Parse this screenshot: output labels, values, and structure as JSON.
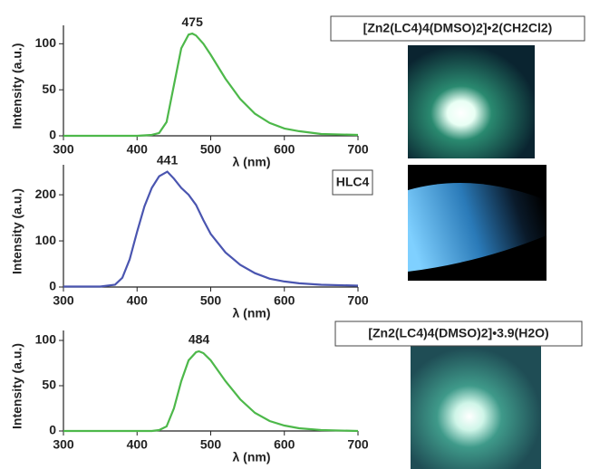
{
  "chart_data": [
    {
      "type": "line",
      "label": "[Zn2(LC4)4(DMSO)2]•2(CH2Cl2)",
      "xlabel": "λ (nm)",
      "ylabel": "Intensity (a.u.)",
      "color": "#4db84a",
      "x": [
        300,
        350,
        400,
        420,
        430,
        440,
        450,
        460,
        470,
        475,
        480,
        490,
        500,
        520,
        540,
        560,
        580,
        600,
        620,
        650,
        700
      ],
      "values": [
        0,
        0,
        0,
        1,
        3,
        15,
        55,
        95,
        110,
        111,
        109,
        100,
        88,
        62,
        40,
        24,
        14,
        8,
        5,
        2,
        1
      ],
      "xlim": [
        300,
        700
      ],
      "xticks": [
        300,
        400,
        500,
        600,
        700
      ],
      "ylim": [
        0,
        120
      ],
      "yticks": [
        0,
        50,
        100
      ],
      "annotations": [
        {
          "text": "475",
          "x": 475,
          "y": 111
        }
      ]
    },
    {
      "type": "line",
      "label": "HLC4",
      "xlabel": "λ (nm)",
      "ylabel": "Intensity (a.u.)",
      "color": "#4a55b0",
      "x": [
        300,
        350,
        370,
        380,
        390,
        400,
        410,
        420,
        430,
        441,
        450,
        460,
        470,
        480,
        490,
        500,
        520,
        540,
        560,
        580,
        600,
        620,
        650,
        700
      ],
      "values": [
        1,
        1,
        5,
        20,
        60,
        120,
        175,
        215,
        240,
        250,
        235,
        215,
        200,
        178,
        145,
        115,
        75,
        48,
        30,
        18,
        12,
        8,
        5,
        3
      ],
      "xlim": [
        300,
        700
      ],
      "xticks": [
        300,
        400,
        500,
        600,
        700
      ],
      "ylim": [
        0,
        265
      ],
      "yticks": [
        0,
        100,
        200
      ],
      "annotations": [
        {
          "text": "441",
          "x": 441,
          "y": 250
        }
      ]
    },
    {
      "type": "line",
      "label": "[Zn2(LC4)4(DMSO)2]•3.9(H2O)",
      "xlabel": "λ (nm)",
      "ylabel": "Intensity (a.u.)",
      "color": "#4db84a",
      "x": [
        300,
        350,
        400,
        420,
        430,
        440,
        450,
        460,
        470,
        480,
        484,
        490,
        500,
        520,
        540,
        560,
        580,
        600,
        620,
        650,
        700
      ],
      "values": [
        0,
        0,
        0,
        0,
        1,
        5,
        25,
        55,
        78,
        87,
        88,
        86,
        78,
        55,
        35,
        20,
        11,
        6,
        3,
        1,
        0
      ],
      "xlim": [
        300,
        700
      ],
      "xticks": [
        300,
        400,
        500,
        600,
        700
      ],
      "ylim": [
        0,
        111
      ],
      "yticks": [
        0,
        50,
        100
      ],
      "annotations": [
        {
          "text": "484",
          "x": 484,
          "y": 88
        }
      ]
    }
  ]
}
